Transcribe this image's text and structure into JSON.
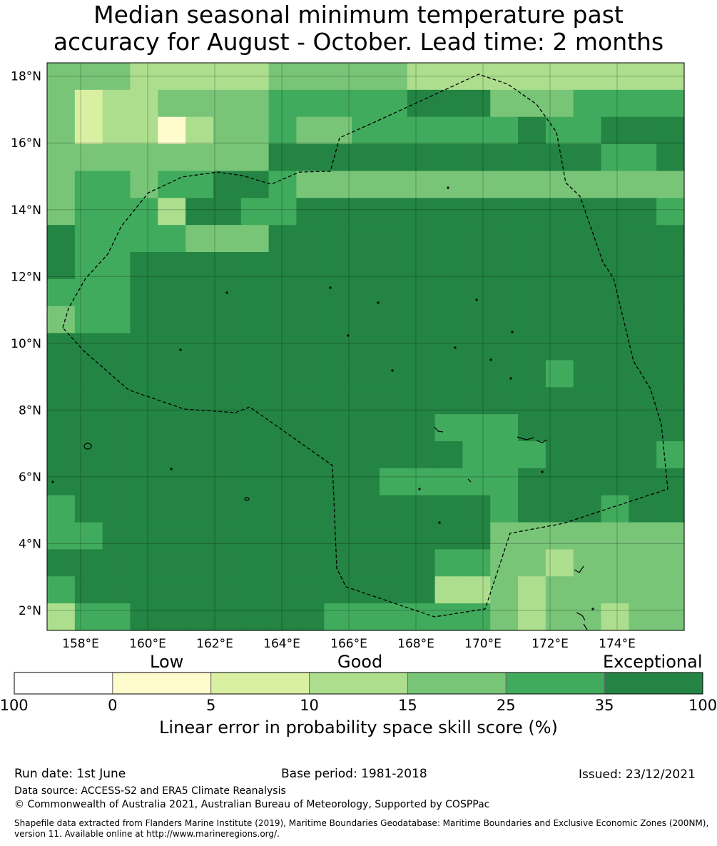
{
  "title_line1": "Median seasonal minimum temperature past",
  "title_line2": "accuracy for August - October. Lead time: 2 months",
  "map": {
    "lon_range": [
      157,
      176
    ],
    "lat_range": [
      1.4,
      18.4
    ],
    "lat_ticks": [
      "18°N",
      "16°N",
      "14°N",
      "12°N",
      "10°N",
      "8°N",
      "6°N",
      "4°N",
      "2°N"
    ],
    "lon_ticks": [
      "158°E",
      "160°E",
      "162°E",
      "164°E",
      "166°E",
      "168°E",
      "170°E",
      "172°E",
      "174°E"
    ],
    "grid_cols": 23,
    "grid_rows": 21,
    "cell_legend_codes": "0=(0-5) 1=(5-10) 2=(10-15) 3=(15-25) 4=(25-35) 5=(35-100)",
    "cells": [
      "33322222333332222222222",
      "31223333444445553334444",
      "31220233433444444544555",
      "33333333555555555555445",
      "34434455433333333333333",
      "34442554455555555555554",
      "54444333555555555555555",
      "54455555555555555555555",
      "44455555555555555555555",
      "34455555555555555555555",
      "55555555555555555555555",
      "55555555555555555545555",
      "55555555555555555555555",
      "55555555555555444555555",
      "55555555555555544455554",
      "55555555555544444555555",
      "45555555555555554555455",
      "44555555555555553333333",
      "55555555555555443323333",
      "45555555555555223233333",
      "24455555554444443233233"
    ]
  },
  "colorbar": {
    "category_labels": [
      "Low",
      "Good",
      "Exceptional"
    ],
    "boundaries": [
      "-100",
      "0",
      "5",
      "10",
      "15",
      "25",
      "35",
      "100"
    ],
    "colors": [
      "#ffffff",
      "#fefccc",
      "#d9efa2",
      "#acde8e",
      "#78c578",
      "#41ab5d",
      "#238443"
    ],
    "axis_label": "Linear error in probability space skill score (%)"
  },
  "footer": {
    "run_date": "Run date: 1st June",
    "base_period": "Base period: 1981-2018",
    "issued": "Issued: 23/12/2021",
    "data_source": "Data source: ACCESS-S2 and ERA5 Climate Reanalysis",
    "copyright": "© Commonwealth of Australia 2021, Australian Bureau of Meteorology, Supported by COSPPac",
    "shapefile_line1": "Shapefile data extracted from Flanders Marine Institute (2019), Maritime Boundaries Geodatabase: Maritime Boundaries and Exclusive Economic Zones (200NM),",
    "shapefile_line2": "version 11. Available online at http://www.marineregions.org/."
  }
}
